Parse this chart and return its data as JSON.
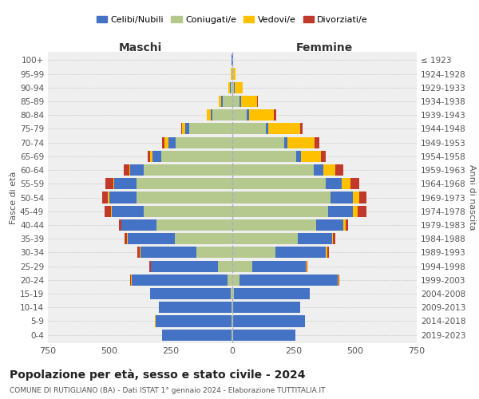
{
  "age_groups": [
    "0-4",
    "5-9",
    "10-14",
    "15-19",
    "20-24",
    "25-29",
    "30-34",
    "35-39",
    "40-44",
    "45-49",
    "50-54",
    "55-59",
    "60-64",
    "65-69",
    "70-74",
    "75-79",
    "80-84",
    "85-89",
    "90-94",
    "95-99",
    "100+"
  ],
  "birth_years": [
    "2019-2023",
    "2014-2018",
    "2009-2013",
    "2004-2008",
    "1999-2003",
    "1994-1998",
    "1989-1993",
    "1984-1988",
    "1979-1983",
    "1974-1978",
    "1969-1973",
    "1964-1968",
    "1959-1963",
    "1954-1958",
    "1949-1953",
    "1944-1948",
    "1939-1943",
    "1934-1938",
    "1929-1933",
    "1924-1928",
    "≤ 1923"
  ],
  "maschi": {
    "celibi": [
      285,
      310,
      295,
      330,
      390,
      270,
      230,
      190,
      140,
      130,
      110,
      90,
      55,
      35,
      30,
      18,
      8,
      5,
      3,
      2,
      2
    ],
    "coniugati": [
      2,
      2,
      3,
      5,
      20,
      60,
      145,
      235,
      310,
      360,
      390,
      390,
      360,
      290,
      230,
      175,
      80,
      40,
      8,
      2,
      0
    ],
    "vedovi": [
      0,
      2,
      0,
      0,
      2,
      2,
      2,
      2,
      2,
      5,
      5,
      5,
      5,
      10,
      15,
      10,
      15,
      10,
      5,
      2,
      0
    ],
    "divorziati": [
      0,
      0,
      0,
      0,
      2,
      5,
      8,
      10,
      10,
      25,
      25,
      30,
      20,
      10,
      10,
      5,
      0,
      0,
      0,
      0,
      0
    ]
  },
  "femmine": {
    "nubili": [
      255,
      295,
      275,
      310,
      400,
      220,
      205,
      140,
      110,
      100,
      90,
      65,
      40,
      20,
      15,
      10,
      8,
      5,
      3,
      2,
      2
    ],
    "coniugate": [
      2,
      2,
      2,
      5,
      30,
      80,
      175,
      265,
      340,
      390,
      400,
      380,
      330,
      260,
      210,
      135,
      60,
      30,
      8,
      2,
      0
    ],
    "vedove": [
      0,
      0,
      0,
      0,
      2,
      2,
      5,
      5,
      10,
      20,
      25,
      35,
      50,
      80,
      110,
      130,
      100,
      65,
      30,
      10,
      2
    ],
    "divorziate": [
      0,
      0,
      0,
      0,
      2,
      2,
      8,
      10,
      10,
      35,
      30,
      35,
      30,
      20,
      20,
      10,
      10,
      5,
      0,
      0,
      0
    ]
  },
  "colors": {
    "celibi": "#4472c4",
    "coniugati": "#b5c98e",
    "vedovi": "#ffc000",
    "divorziati": "#c0392b"
  },
  "xlim": 750,
  "title": "Popolazione per età, sesso e stato civile - 2024",
  "subtitle": "COMUNE DI RUTIGLIANO (BA) - Dati ISTAT 1° gennaio 2024 - Elaborazione TUTTITALIA.IT",
  "ylabel_left": "Fasce di età",
  "ylabel_right": "Anni di nascita",
  "xlabel_left": "Maschi",
  "xlabel_right": "Femmine",
  "bg_color": "#ffffff",
  "plot_bg": "#efefef",
  "grid_color": "#cccccc"
}
